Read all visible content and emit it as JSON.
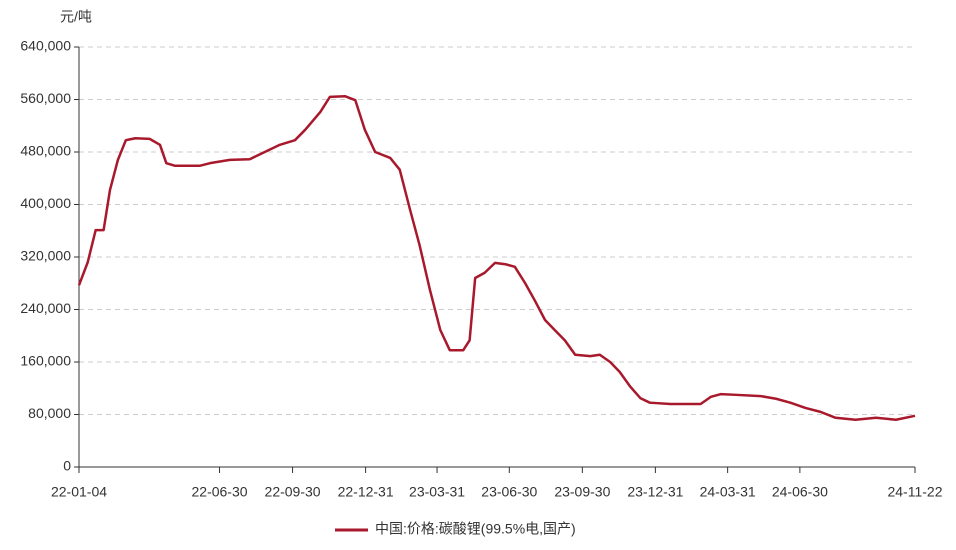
{
  "chart_data": {
    "type": "line",
    "y_label": "元/吨",
    "x": [
      "22-01-04",
      "22-01-15",
      "22-01-25",
      "22-02-04",
      "22-02-12",
      "22-02-22",
      "22-03-04",
      "22-03-16",
      "22-04-03",
      "22-04-16",
      "22-04-24",
      "22-05-05",
      "22-06-05",
      "22-06-18",
      "22-07-13",
      "22-08-07",
      "22-08-26",
      "22-09-14",
      "22-10-03",
      "22-10-16",
      "22-11-04",
      "22-11-16",
      "22-12-05",
      "22-12-18",
      "22-12-30",
      "23-01-12",
      "23-01-31",
      "23-02-12",
      "23-02-25",
      "23-03-09",
      "23-03-22",
      "23-04-04",
      "23-04-16",
      "23-05-03",
      "23-05-11",
      "23-05-18",
      "23-05-30",
      "23-06-12",
      "23-06-25",
      "23-07-07",
      "23-07-20",
      "23-08-01",
      "23-08-14",
      "23-08-26",
      "23-09-08",
      "23-09-21",
      "23-10-10",
      "23-10-22",
      "23-11-04",
      "23-11-16",
      "23-11-29",
      "23-12-12",
      "23-12-24",
      "24-01-19",
      "24-02-26",
      "24-03-10",
      "24-03-22",
      "24-04-10",
      "24-05-12",
      "24-05-31",
      "24-06-18",
      "24-07-07",
      "24-07-26",
      "24-08-14",
      "24-09-08",
      "24-10-04",
      "24-10-29",
      "24-11-22"
    ],
    "series": [
      {
        "name": "中国:价格:碳酸锂(99.5%电,国产)",
        "color": "#a8192c",
        "values": [
          277000,
          312000,
          361000,
          361000,
          422000,
          468000,
          498000,
          501000,
          500000,
          491000,
          463000,
          459000,
          459000,
          463000,
          468000,
          469000,
          480000,
          491000,
          498000,
          514000,
          541000,
          564000,
          565000,
          559000,
          514000,
          480000,
          471000,
          453000,
          392000,
          338000,
          270000,
          209000,
          178000,
          178000,
          193000,
          288000,
          296000,
          311000,
          309000,
          305000,
          280000,
          254000,
          224000,
          209000,
          193000,
          171000,
          169000,
          171000,
          160000,
          145000,
          123000,
          105000,
          98000,
          96000,
          96000,
          107000,
          111000,
          110000,
          108000,
          104000,
          98000,
          90000,
          84000,
          75000,
          72000,
          75000,
          72000,
          78000
        ]
      }
    ],
    "xlim": [
      "22-01-04",
      "24-11-22"
    ],
    "xticks": [
      "22-01-04",
      "22-06-30",
      "22-09-30",
      "22-12-31",
      "23-03-31",
      "23-06-30",
      "23-09-30",
      "23-12-31",
      "24-03-31",
      "24-06-30",
      "24-11-22"
    ],
    "ylim": [
      0,
      640000
    ],
    "yticks": [
      0,
      {
        "value": 80000,
        "label": "80,000"
      },
      {
        "value": 160000,
        "label": "160,000"
      },
      {
        "value": 240000,
        "label": "240,000"
      },
      {
        "value": 320000,
        "label": "320,000"
      },
      {
        "value": 400000,
        "label": "400,000"
      },
      {
        "value": 480000,
        "label": "480,000"
      },
      {
        "value": 560000,
        "label": "560,000"
      },
      {
        "value": 640000,
        "label": "640,000"
      }
    ],
    "grid": true
  }
}
